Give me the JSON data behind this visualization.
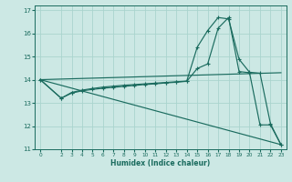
{
  "title": "",
  "xlabel": "Humidex (Indice chaleur)",
  "background_color": "#cce8e4",
  "grid_color": "#aad4ce",
  "line_color": "#1a6b5e",
  "xlim": [
    -0.5,
    23.5
  ],
  "ylim": [
    11,
    17.2
  ],
  "xticks": [
    0,
    2,
    3,
    4,
    5,
    6,
    7,
    8,
    9,
    10,
    11,
    12,
    13,
    14,
    15,
    16,
    17,
    18,
    19,
    20,
    21,
    22,
    23
  ],
  "yticks": [
    11,
    12,
    13,
    14,
    15,
    16,
    17
  ],
  "line1_x": [
    0,
    2,
    3,
    4,
    5,
    6,
    7,
    8,
    9,
    10,
    11,
    12,
    13,
    14,
    15,
    16,
    17,
    18,
    19,
    20,
    21,
    22,
    23
  ],
  "line1_y": [
    14.0,
    13.2,
    13.45,
    13.55,
    13.62,
    13.68,
    13.72,
    13.76,
    13.79,
    13.82,
    13.85,
    13.88,
    13.91,
    13.94,
    15.4,
    16.12,
    16.68,
    16.62,
    14.88,
    14.32,
    14.28,
    12.1,
    11.2
  ],
  "line2_x": [
    0,
    2,
    3,
    4,
    5,
    6,
    7,
    8,
    9,
    10,
    11,
    12,
    13,
    14,
    15,
    16,
    17,
    18,
    19,
    20,
    21,
    22,
    23
  ],
  "line2_y": [
    14.0,
    13.2,
    13.42,
    13.52,
    13.58,
    13.63,
    13.67,
    13.71,
    13.75,
    13.79,
    13.82,
    13.86,
    13.89,
    13.93,
    14.48,
    14.68,
    16.22,
    16.68,
    14.35,
    14.3,
    12.05,
    12.05,
    11.2
  ],
  "line3_x": [
    0,
    23
  ],
  "line3_y": [
    14.0,
    11.2
  ],
  "line4_x": [
    0,
    23
  ],
  "line4_y": [
    14.0,
    14.3
  ]
}
